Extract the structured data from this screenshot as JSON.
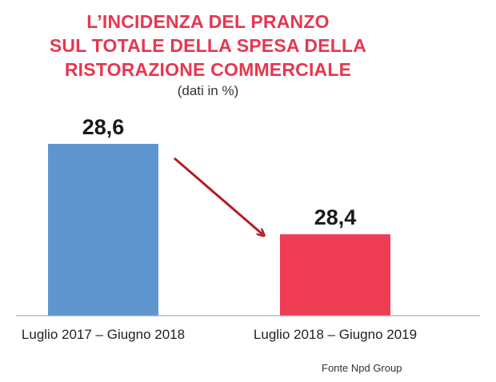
{
  "title_lines": [
    "L’INCIDENZA DEL PRANZO",
    "SUL TOTALE DELLA SPESA DELLA",
    "RISTORAZIONE COMMERCIALE"
  ],
  "subtitle": "(dati in %)",
  "source": "Fonte Npd Group",
  "colors": {
    "title": "#e8364f",
    "bar1": "#6096cf",
    "bar2": "#ef3d56",
    "arrow": "#b31c22",
    "axis": "#9a9a9a"
  },
  "chart_data": {
    "type": "bar",
    "categories": [
      "Luglio 2017 – Giugno 2018",
      "Luglio 2018 – Giugno 2019"
    ],
    "values": [
      28.6,
      28.4
    ],
    "value_labels": [
      "28,6",
      "28,4"
    ],
    "title": "L’INCIDENZA DEL PRANZO SUL TOTALE DELLA SPESA DELLA RISTORAZIONE COMMERCIALE",
    "subtitle": "(dati in %)",
    "annotation": "downward arrow from first to second bar",
    "grid": false,
    "legend": "none"
  }
}
